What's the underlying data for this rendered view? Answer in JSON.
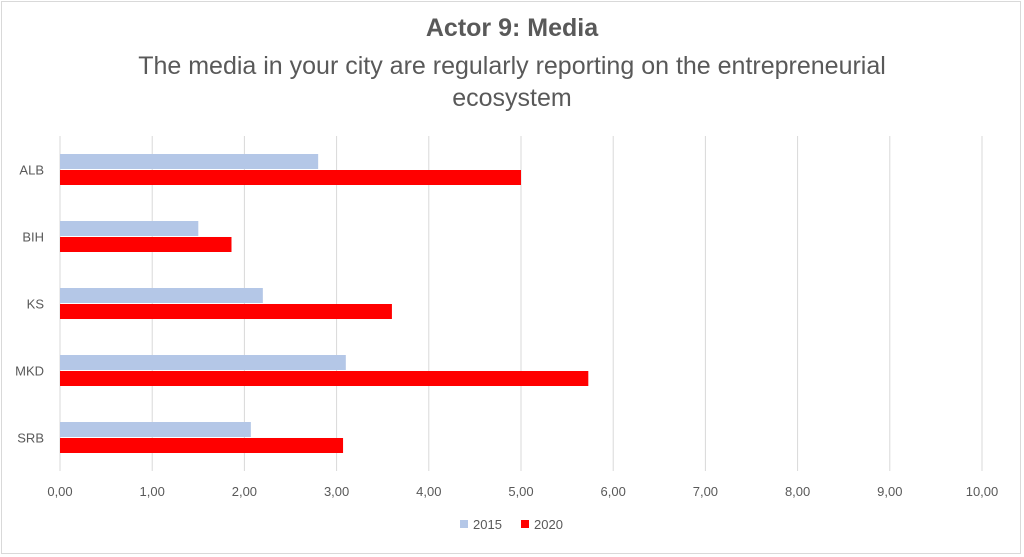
{
  "chart_data": {
    "type": "bar",
    "orientation": "horizontal",
    "title": "Actor 9: Media",
    "subtitle": "The media in your city are regularly reporting on the entrepreneurial ecosystem",
    "categories": [
      "ALB",
      "BIH",
      "KS",
      "MKD",
      "SRB"
    ],
    "series": [
      {
        "name": "2015",
        "color": "#b4c7e7",
        "values": [
          2.8,
          1.5,
          2.2,
          3.1,
          2.07
        ]
      },
      {
        "name": "2020",
        "color": "#ff0000",
        "values": [
          5.0,
          1.86,
          3.6,
          5.73,
          3.07
        ]
      }
    ],
    "xlim": [
      0,
      10
    ],
    "x_ticks": [
      "0,00",
      "1,00",
      "2,00",
      "3,00",
      "4,00",
      "5,00",
      "6,00",
      "7,00",
      "8,00",
      "9,00",
      "10,00"
    ],
    "grid": true,
    "legend_position": "bottom"
  }
}
